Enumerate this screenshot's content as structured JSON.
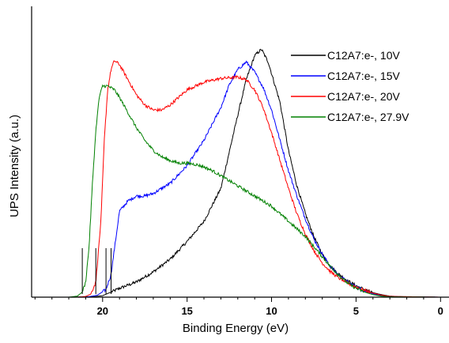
{
  "chart_data": {
    "type": "line",
    "xlabel": "Binding Energy (eV)",
    "ylabel": "UPS Intensity (a.u.)",
    "x_reversed": true,
    "xlim": [
      24.2,
      -0.5
    ],
    "ylim": [
      0,
      1.0
    ],
    "xticks": [
      20,
      15,
      10,
      5,
      0
    ],
    "yticks": [],
    "grid": false,
    "legend_position": "top-right",
    "series": [
      {
        "name": "C12A7:e-, 10V",
        "color": "#000000",
        "points": [
          [
            24.2,
            0.0
          ],
          [
            22.0,
            0.0
          ],
          [
            20.5,
            0.002
          ],
          [
            20.0,
            0.006
          ],
          [
            19.5,
            0.02
          ],
          [
            19.0,
            0.035
          ],
          [
            18.0,
            0.06
          ],
          [
            17.0,
            0.1
          ],
          [
            16.0,
            0.15
          ],
          [
            15.0,
            0.22
          ],
          [
            14.0,
            0.3
          ],
          [
            13.0,
            0.43
          ],
          [
            12.0,
            0.72
          ],
          [
            11.5,
            0.86
          ],
          [
            11.0,
            0.955
          ],
          [
            10.6,
            0.98
          ],
          [
            10.2,
            0.93
          ],
          [
            9.5,
            0.77
          ],
          [
            9.0,
            0.58
          ],
          [
            8.5,
            0.44
          ],
          [
            8.0,
            0.33
          ],
          [
            7.5,
            0.24
          ],
          [
            7.0,
            0.17
          ],
          [
            6.5,
            0.12
          ],
          [
            6.0,
            0.09
          ],
          [
            5.5,
            0.065
          ],
          [
            5.0,
            0.045
          ],
          [
            4.5,
            0.03
          ],
          [
            4.0,
            0.018
          ],
          [
            3.5,
            0.01
          ],
          [
            3.0,
            0.004
          ],
          [
            2.0,
            0.001
          ],
          [
            0.0,
            0.0
          ],
          [
            -0.5,
            0.0
          ]
        ]
      },
      {
        "name": "C12A7:e-, 15V",
        "color": "#0000ff",
        "points": [
          [
            24.2,
            0.0
          ],
          [
            21.5,
            0.0
          ],
          [
            20.8,
            0.002
          ],
          [
            20.3,
            0.008
          ],
          [
            19.8,
            0.03
          ],
          [
            19.5,
            0.09
          ],
          [
            19.2,
            0.24
          ],
          [
            19.0,
            0.34
          ],
          [
            18.5,
            0.38
          ],
          [
            18.0,
            0.4
          ],
          [
            17.5,
            0.4
          ],
          [
            17.0,
            0.41
          ],
          [
            16.5,
            0.43
          ],
          [
            16.0,
            0.45
          ],
          [
            15.0,
            0.52
          ],
          [
            14.0,
            0.62
          ],
          [
            13.0,
            0.75
          ],
          [
            12.5,
            0.84
          ],
          [
            12.0,
            0.9
          ],
          [
            11.5,
            0.93
          ],
          [
            11.0,
            0.89
          ],
          [
            10.5,
            0.83
          ],
          [
            10.0,
            0.74
          ],
          [
            9.5,
            0.62
          ],
          [
            9.0,
            0.5
          ],
          [
            8.5,
            0.4
          ],
          [
            8.0,
            0.31
          ],
          [
            7.5,
            0.23
          ],
          [
            7.0,
            0.17
          ],
          [
            6.5,
            0.12
          ],
          [
            6.0,
            0.085
          ],
          [
            5.5,
            0.06
          ],
          [
            5.0,
            0.04
          ],
          [
            4.5,
            0.025
          ],
          [
            4.0,
            0.013
          ],
          [
            3.5,
            0.006
          ],
          [
            3.0,
            0.002
          ],
          [
            0.0,
            0.0
          ],
          [
            -0.5,
            0.0
          ]
        ]
      },
      {
        "name": "C12A7:e-, 20V",
        "color": "#ff0000",
        "points": [
          [
            24.2,
            0.0
          ],
          [
            21.5,
            0.0
          ],
          [
            21.0,
            0.003
          ],
          [
            20.7,
            0.012
          ],
          [
            20.4,
            0.06
          ],
          [
            20.1,
            0.3
          ],
          [
            19.9,
            0.62
          ],
          [
            19.7,
            0.82
          ],
          [
            19.5,
            0.9
          ],
          [
            19.3,
            0.935
          ],
          [
            19.0,
            0.92
          ],
          [
            18.5,
            0.86
          ],
          [
            18.0,
            0.8
          ],
          [
            17.5,
            0.76
          ],
          [
            17.0,
            0.74
          ],
          [
            16.5,
            0.74
          ],
          [
            16.0,
            0.76
          ],
          [
            15.5,
            0.79
          ],
          [
            15.0,
            0.82
          ],
          [
            14.0,
            0.85
          ],
          [
            13.0,
            0.865
          ],
          [
            12.0,
            0.87
          ],
          [
            11.5,
            0.86
          ],
          [
            11.0,
            0.82
          ],
          [
            10.5,
            0.75
          ],
          [
            10.0,
            0.65
          ],
          [
            9.5,
            0.54
          ],
          [
            9.0,
            0.43
          ],
          [
            8.5,
            0.33
          ],
          [
            8.0,
            0.25
          ],
          [
            7.5,
            0.185
          ],
          [
            7.0,
            0.135
          ],
          [
            6.5,
            0.1
          ],
          [
            6.0,
            0.075
          ],
          [
            5.5,
            0.055
          ],
          [
            5.0,
            0.04
          ],
          [
            4.5,
            0.027
          ],
          [
            4.0,
            0.016
          ],
          [
            3.5,
            0.008
          ],
          [
            3.0,
            0.003
          ],
          [
            0.0,
            0.0
          ],
          [
            -0.5,
            0.0
          ]
        ]
      },
      {
        "name": "C12A7:e-, 27.9V",
        "color": "#008000",
        "points": [
          [
            24.2,
            0.0
          ],
          [
            22.0,
            0.0
          ],
          [
            21.5,
            0.004
          ],
          [
            21.2,
            0.02
          ],
          [
            21.0,
            0.06
          ],
          [
            20.8,
            0.2
          ],
          [
            20.6,
            0.45
          ],
          [
            20.4,
            0.66
          ],
          [
            20.2,
            0.79
          ],
          [
            20.0,
            0.835
          ],
          [
            19.7,
            0.835
          ],
          [
            19.3,
            0.82
          ],
          [
            19.0,
            0.79
          ],
          [
            18.5,
            0.73
          ],
          [
            18.0,
            0.67
          ],
          [
            17.5,
            0.62
          ],
          [
            17.0,
            0.58
          ],
          [
            16.5,
            0.555
          ],
          [
            16.0,
            0.54
          ],
          [
            15.5,
            0.53
          ],
          [
            15.0,
            0.53
          ],
          [
            14.5,
            0.525
          ],
          [
            14.0,
            0.515
          ],
          [
            13.5,
            0.5
          ],
          [
            13.0,
            0.48
          ],
          [
            12.0,
            0.44
          ],
          [
            11.0,
            0.4
          ],
          [
            10.0,
            0.36
          ],
          [
            9.5,
            0.33
          ],
          [
            9.0,
            0.3
          ],
          [
            8.0,
            0.24
          ],
          [
            7.5,
            0.2
          ],
          [
            7.0,
            0.16
          ],
          [
            6.5,
            0.12
          ],
          [
            6.0,
            0.085
          ],
          [
            5.5,
            0.055
          ],
          [
            5.0,
            0.035
          ],
          [
            4.5,
            0.02
          ],
          [
            4.0,
            0.01
          ],
          [
            3.5,
            0.004
          ],
          [
            3.0,
            0.0015
          ],
          [
            0.0,
            0.0
          ],
          [
            -0.5,
            0.0
          ]
        ]
      }
    ]
  }
}
